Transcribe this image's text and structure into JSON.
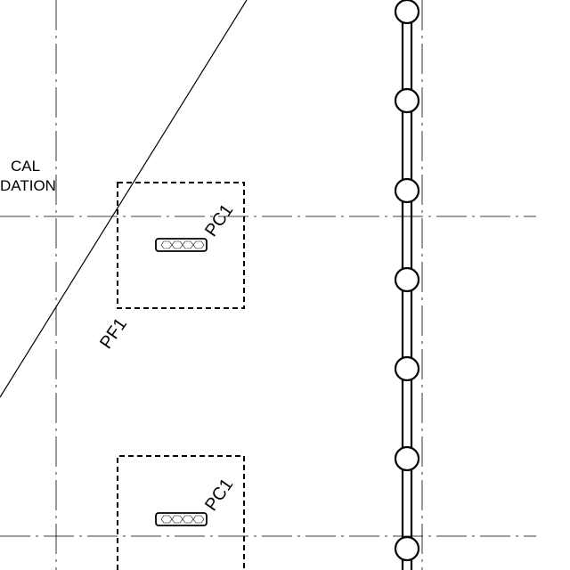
{
  "note": {
    "line1": "CAL",
    "line2": "DATION"
  },
  "tags": {
    "footing_upper": "PF1",
    "column_upper": "PC1",
    "column_lower": "PC1"
  },
  "colors": {
    "ink": "#000000",
    "background": "#ffffff"
  }
}
